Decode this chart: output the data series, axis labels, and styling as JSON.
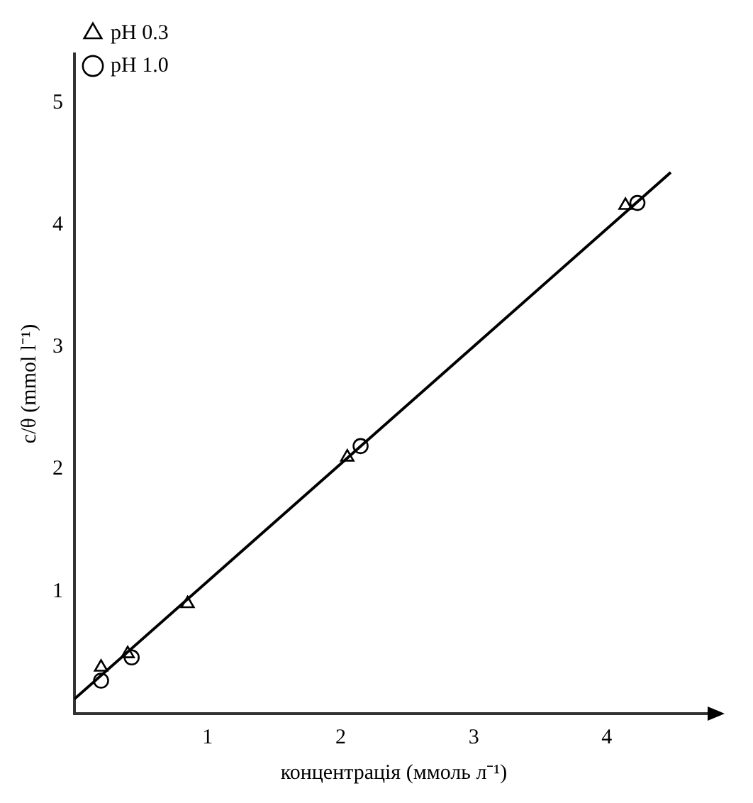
{
  "chart_data": {
    "type": "scatter",
    "xlabel": "концентрація (ммоль л⁻¹)",
    "ylabel": "c/θ (mmol l⁻¹)",
    "xlim": [
      0,
      4.8
    ],
    "ylim": [
      0,
      5.4
    ],
    "xticks": [
      1,
      2,
      3,
      4
    ],
    "yticks": [
      1,
      2,
      3,
      4,
      5
    ],
    "grid": false,
    "legend": "top left",
    "series": [
      {
        "name": "pH 0.3",
        "color": "#000000",
        "marker": "triangle",
        "x": [
          0.2,
          0.4,
          0.85,
          2.05,
          4.14
        ],
        "values": [
          0.38,
          0.49,
          0.9,
          2.1,
          4.16
        ]
      },
      {
        "name": "pH 1.0",
        "color": "#000000",
        "marker": "circle",
        "x": [
          0.2,
          0.43,
          2.15,
          4.23
        ],
        "values": [
          0.27,
          0.46,
          2.19,
          4.18
        ]
      },
      {
        "type": "line",
        "color": "#000000",
        "marker": "none",
        "x": [
          0,
          4.48
        ],
        "values": [
          0.12,
          4.43
        ]
      }
    ]
  }
}
